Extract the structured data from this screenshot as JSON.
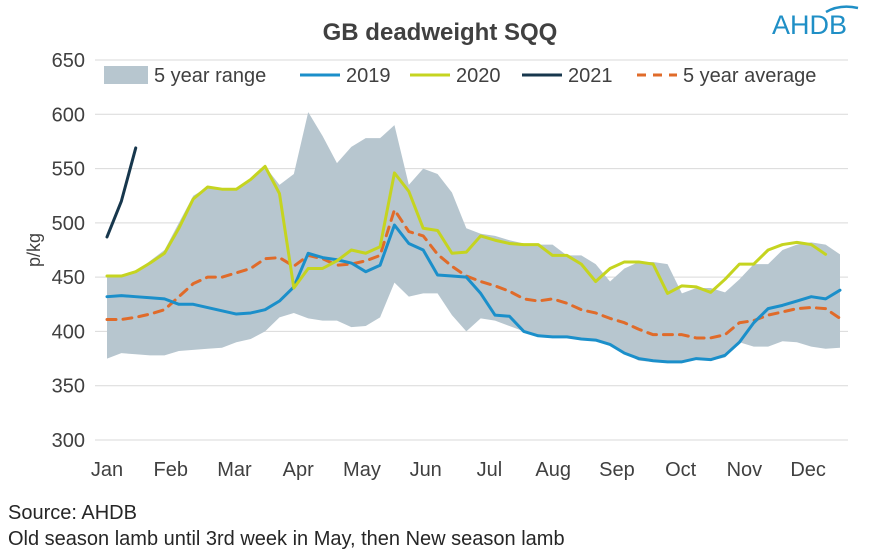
{
  "logo": {
    "text": "AHDB"
  },
  "notes": {
    "source": "Source: AHDB",
    "footnote": "Old season lamb until 3rd week in May, then New season lamb"
  },
  "chart_data": {
    "type": "line",
    "title": "GB deadweight SQQ",
    "ylabel": "p/kg",
    "ylim": [
      300,
      650
    ],
    "yticks": [
      300,
      350,
      400,
      450,
      500,
      550,
      600,
      650
    ],
    "x_range": [
      0,
      51
    ],
    "month_labels": [
      "Jan",
      "Feb",
      "Mar",
      "Apr",
      "May",
      "Jun",
      "Jul",
      "Aug",
      "Sep",
      "Oct",
      "Nov",
      "Dec"
    ],
    "legend_position": "top",
    "colors": {
      "range": "#b7c6cf",
      "y2019": "#1b8fca",
      "y2020": "#c5d420",
      "y2021": "#17374d",
      "avg": "#e06b2a"
    },
    "band": {
      "name": "5 year range",
      "upper": [
        450,
        450,
        455,
        465,
        475,
        500,
        525,
        533,
        531,
        531,
        540,
        552,
        535,
        545,
        602,
        580,
        555,
        570,
        578,
        578,
        590,
        535,
        550,
        545,
        528,
        495,
        490,
        488,
        484,
        481,
        480,
        480,
        470,
        470,
        462,
        446,
        458,
        464,
        464,
        462,
        435,
        440,
        440,
        436,
        448,
        462,
        462,
        475,
        480,
        482,
        480,
        471
      ],
      "lower": [
        375,
        380,
        379,
        378,
        378,
        382,
        383,
        384,
        385,
        390,
        393,
        400,
        413,
        417,
        412,
        410,
        410,
        404,
        405,
        413,
        445,
        432,
        435,
        435,
        415,
        400,
        412,
        410,
        405,
        400,
        397,
        396,
        396,
        393,
        392,
        388,
        380,
        373,
        372,
        371,
        372,
        375,
        373,
        376,
        390,
        386,
        386,
        391,
        390,
        386,
        384,
        385
      ]
    },
    "series": [
      {
        "name": "2019",
        "start": 0,
        "values": [
          432,
          433,
          432,
          431,
          430,
          425,
          425,
          422,
          419,
          416,
          417,
          420,
          428,
          441,
          472,
          468,
          466,
          463,
          455,
          461,
          498,
          481,
          475,
          452,
          451,
          450,
          435,
          415,
          414,
          400,
          396,
          395,
          395,
          393,
          392,
          388,
          380,
          375,
          373,
          372,
          372,
          375,
          374,
          378,
          390,
          408,
          421,
          424,
          428,
          432,
          430,
          438
        ]
      },
      {
        "name": "2020",
        "start": 0,
        "values": [
          451,
          451,
          455,
          463,
          472,
          495,
          522,
          533,
          531,
          531,
          540,
          552,
          527,
          440,
          458,
          458,
          465,
          475,
          472,
          478,
          546,
          529,
          495,
          493,
          472,
          473,
          488,
          484,
          481,
          480,
          480,
          470,
          470,
          462,
          446,
          458,
          464,
          464,
          462,
          435,
          442,
          441,
          436,
          448,
          462,
          462,
          475,
          480,
          482,
          480,
          471
        ]
      },
      {
        "name": "2021",
        "start": 0,
        "values": [
          487,
          520,
          569
        ]
      },
      {
        "name": "5 year average",
        "start": 0,
        "values": [
          411,
          411,
          413,
          416,
          420,
          432,
          444,
          450,
          450,
          454,
          458,
          467,
          468,
          460,
          470,
          467,
          461,
          462,
          465,
          470,
          512,
          492,
          488,
          471,
          460,
          451,
          446,
          442,
          437,
          430,
          428,
          430,
          426,
          420,
          417,
          412,
          408,
          402,
          397,
          397,
          397,
          394,
          394,
          397,
          408,
          410,
          415,
          418,
          421,
          422,
          421,
          412
        ]
      }
    ]
  }
}
